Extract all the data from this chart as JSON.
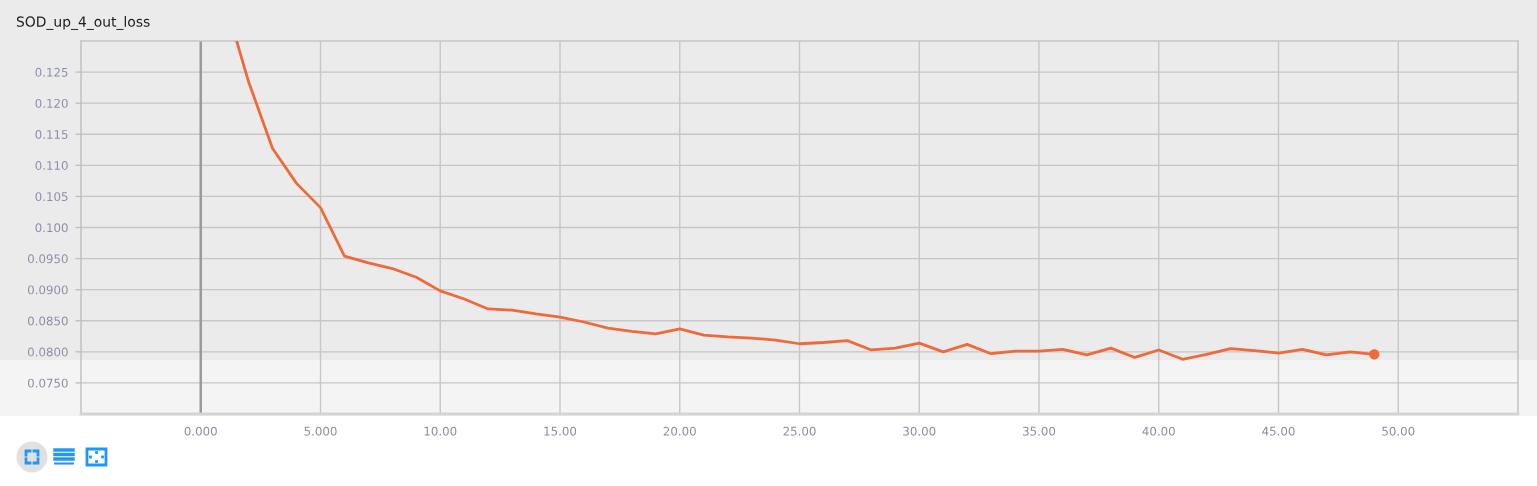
{
  "chart_data": {
    "type": "line",
    "title": "SOD_up_4_out_loss",
    "x": [
      1.5,
      2,
      3,
      4,
      5,
      6,
      7,
      8,
      9,
      10,
      11,
      12,
      13,
      14,
      15,
      16,
      17,
      18,
      19,
      20,
      21,
      22,
      23,
      24,
      25,
      26,
      27,
      28,
      29,
      30,
      31,
      32,
      33,
      34,
      35,
      36,
      37,
      38,
      39,
      40,
      41,
      42,
      43,
      44,
      45,
      46,
      47,
      48,
      49
    ],
    "series": [
      {
        "color": "#ef6a3a",
        "values": [
          0.13,
          0.1234,
          0.1127,
          0.1071,
          0.1032,
          0.0954,
          0.0943,
          0.0934,
          0.092,
          0.0898,
          0.0885,
          0.0869,
          0.0867,
          0.0861,
          0.0856,
          0.0848,
          0.0838,
          0.0833,
          0.0829,
          0.0837,
          0.0827,
          0.0824,
          0.0822,
          0.0819,
          0.0813,
          0.0815,
          0.0818,
          0.0803,
          0.0806,
          0.0814,
          0.08,
          0.0812,
          0.0797,
          0.0801,
          0.0801,
          0.0804,
          0.0795,
          0.0806,
          0.0791,
          0.0803,
          0.0788,
          0.0796,
          0.0805,
          0.0802,
          0.0798,
          0.0804,
          0.0795,
          0.08,
          0.0796
        ]
      },
      {
        "type": "scatter",
        "marker": "circle",
        "color": "#ef6a3a",
        "x": [
          49
        ],
        "values": [
          0.0796
        ]
      }
    ],
    "xlim": [
      -5,
      55
    ],
    "ylim": [
      0.07,
      0.13
    ],
    "xticks": [
      {
        "value": 0,
        "label": "0.000"
      },
      {
        "value": 5,
        "label": "5.000"
      },
      {
        "value": 10,
        "label": "10.00"
      },
      {
        "value": 15,
        "label": "15.00"
      },
      {
        "value": 20,
        "label": "20.00"
      },
      {
        "value": 25,
        "label": "25.00"
      },
      {
        "value": 30,
        "label": "30.00"
      },
      {
        "value": 35,
        "label": "35.00"
      },
      {
        "value": 40,
        "label": "40.00"
      },
      {
        "value": 45,
        "label": "45.00"
      },
      {
        "value": 50,
        "label": "50.00"
      }
    ],
    "yticks": [
      {
        "value": 0.075,
        "label": "0.0750"
      },
      {
        "value": 0.08,
        "label": "0.0800"
      },
      {
        "value": 0.085,
        "label": "0.0850"
      },
      {
        "value": 0.09,
        "label": "0.0900"
      },
      {
        "value": 0.095,
        "label": "0.0950"
      },
      {
        "value": 0.1,
        "label": "0.100"
      },
      0.105,
      {
        "value": 0.11,
        "label": "0.110"
      },
      0.115,
      {
        "value": 0.12,
        "label": "0.120"
      },
      0.125
    ],
    "grid": true,
    "ref_lines": [
      {
        "axis": "x",
        "value": 0,
        "color": "#9a9a9a"
      }
    ]
  }
}
